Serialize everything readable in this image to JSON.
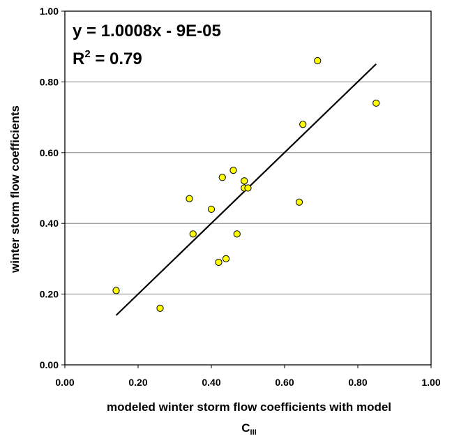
{
  "chart_data": {
    "type": "scatter",
    "xlabel": "modeled winter storm flow coefficients with model",
    "xlabel_symbol": "C",
    "xlabel_subscript": "III",
    "ylabel": "winter storm flow coefficients",
    "xlim": [
      0.0,
      1.0
    ],
    "ylim": [
      0.0,
      1.0
    ],
    "x_ticks": [
      "0.00",
      "0.20",
      "0.40",
      "0.60",
      "0.80",
      "1.00"
    ],
    "y_ticks": [
      "0.00",
      "0.20",
      "0.40",
      "0.60",
      "0.80",
      "1.00"
    ],
    "grid": "horizontal",
    "annotations": {
      "equation": "y = 1.0008x - 9E-05",
      "r2_prefix": "R",
      "r2_sup": "2",
      "r2_value": " = 0.79"
    },
    "points": [
      {
        "x": 0.14,
        "y": 0.21
      },
      {
        "x": 0.26,
        "y": 0.16
      },
      {
        "x": 0.34,
        "y": 0.47
      },
      {
        "x": 0.35,
        "y": 0.37
      },
      {
        "x": 0.4,
        "y": 0.44
      },
      {
        "x": 0.42,
        "y": 0.29
      },
      {
        "x": 0.43,
        "y": 0.53
      },
      {
        "x": 0.44,
        "y": 0.3
      },
      {
        "x": 0.46,
        "y": 0.55
      },
      {
        "x": 0.47,
        "y": 0.37
      },
      {
        "x": 0.49,
        "y": 0.52
      },
      {
        "x": 0.49,
        "y": 0.5
      },
      {
        "x": 0.5,
        "y": 0.5
      },
      {
        "x": 0.64,
        "y": 0.46
      },
      {
        "x": 0.65,
        "y": 0.68
      },
      {
        "x": 0.69,
        "y": 0.86
      },
      {
        "x": 0.85,
        "y": 0.74
      }
    ],
    "trendline": {
      "slope": 1.0008,
      "intercept": -9e-05,
      "x_start": 0.14,
      "x_end": 0.85
    },
    "colors": {
      "marker_fill": "#FFFF00",
      "marker_stroke": "#000000",
      "line": "#000000",
      "grid": "#808080"
    }
  }
}
